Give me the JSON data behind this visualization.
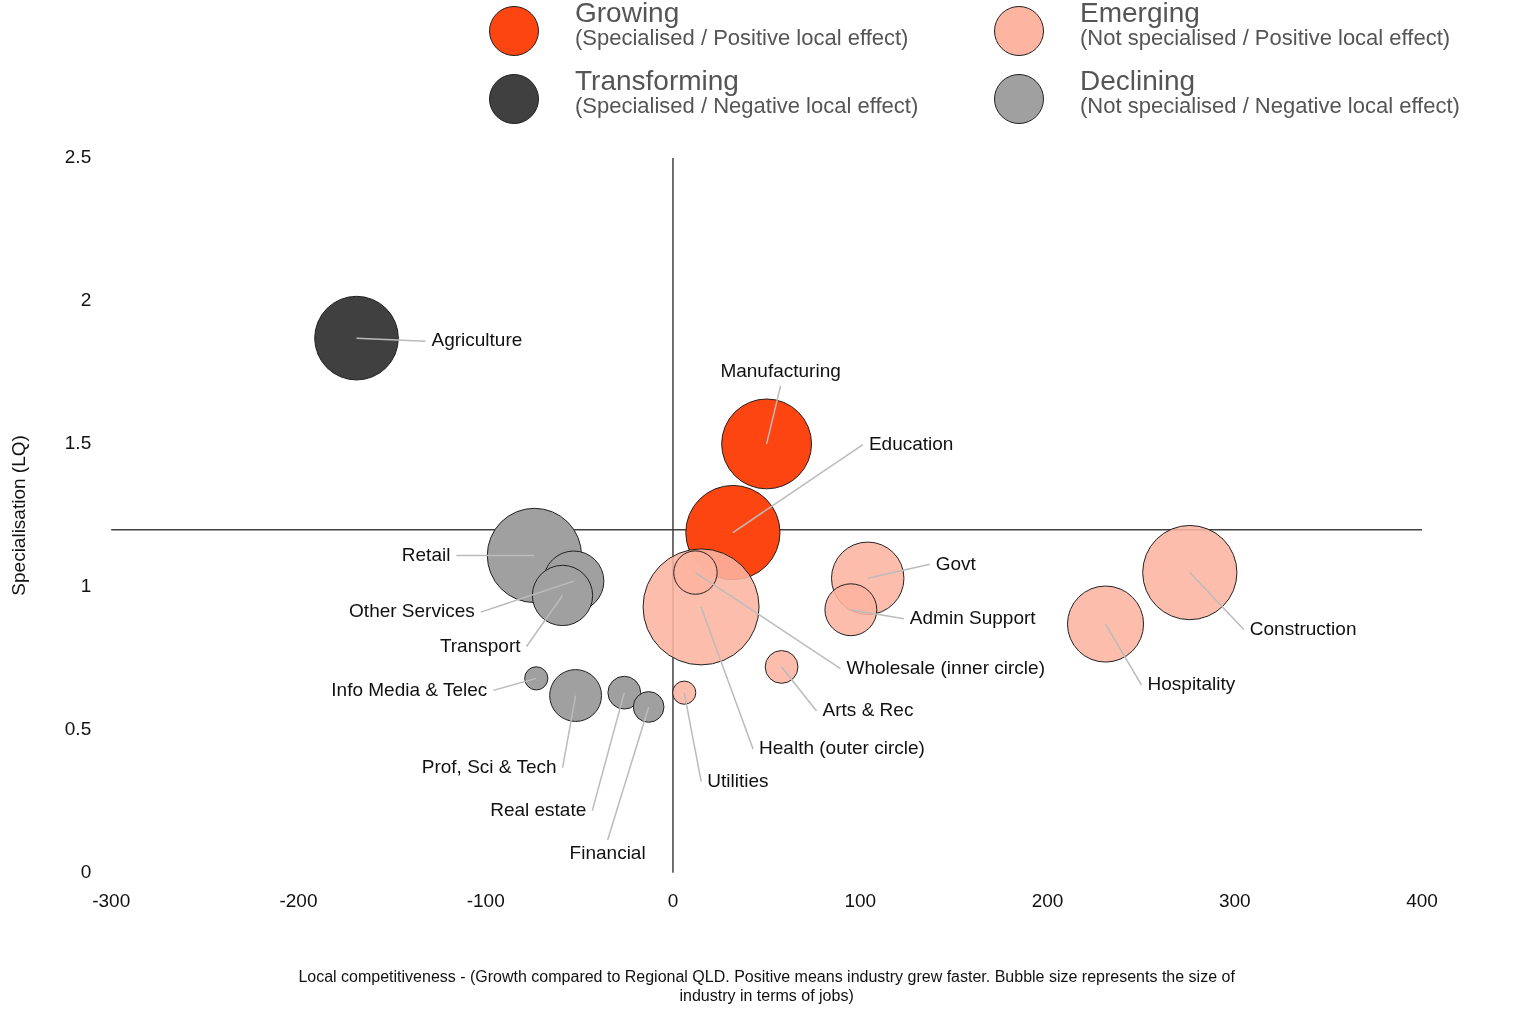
{
  "chart_data": {
    "type": "bubble",
    "xlabel": "Local competitiveness - (Growth compared to Regional QLD. Positive means industry grew faster. Bubble size represents the size of industry in terms of jobs)",
    "ylabel": "Specialisation (LQ)",
    "xlim": [
      -300,
      400
    ],
    "xticks": [
      -300,
      -200,
      -100,
      0,
      100,
      200,
      300,
      400
    ],
    "ylim": [
      0,
      2.5
    ],
    "yticks": [
      0,
      0.5,
      1,
      1.5,
      2,
      2.5
    ],
    "grid": false,
    "legend": "top",
    "series": [
      {
        "name": "Growing\n(Specialised / Positive local effect)",
        "color": "#fc4511",
        "x": [
          50,
          32
        ],
        "values": [
          1.5,
          1.19
        ],
        "sizes": [
          0.6,
          0.66
        ]
      },
      {
        "name": "Emerging\n(Not specialised / Positive local effect)",
        "color": "#fdb4a0",
        "x": [
          15,
          12,
          104,
          95,
          276,
          231,
          58,
          6
        ],
        "values": [
          0.93,
          1.05,
          1.03,
          0.92,
          1.05,
          0.87,
          0.72,
          0.63
        ],
        "sizes": [
          1,
          0.14,
          0.39,
          0.2,
          0.66,
          0.43,
          0.08,
          0.04
        ]
      },
      {
        "name": "Transforming\n(Specialised / Negative local effect)",
        "color": "#404040",
        "x": [
          -169
        ],
        "values": [
          1.87
        ],
        "sizes": [
          0.52
        ]
      },
      {
        "name": "Declining\n(Not specialised / Negative local effect)",
        "color": "#a0a0a0",
        "x": [
          -74,
          -53,
          -59,
          -73,
          -52,
          -26,
          -13
        ],
        "values": [
          1.11,
          1.02,
          0.97,
          0.68,
          0.62,
          0.63,
          0.58
        ],
        "sizes": [
          0.66,
          0.27,
          0.27,
          0.04,
          0.2,
          0.08,
          0.07
        ]
      }
    ],
    "ref_lines": [
      {
        "axis": "x",
        "value": 0,
        "color": "#404040"
      },
      {
        "axis": "y",
        "value": 1.2,
        "color": "#404040"
      }
    ],
    "annotations": [
      {
        "text": "Agriculture",
        "x": -169,
        "y": 1.87
      },
      {
        "text": "Manufacturing",
        "x": 50,
        "y": 1.5
      },
      {
        "text": "Education",
        "x": 32,
        "y": 1.19
      },
      {
        "text": "Govt",
        "x": 104,
        "y": 1.03
      },
      {
        "text": "Admin Support",
        "x": 95,
        "y": 0.92
      },
      {
        "text": "Construction",
        "x": 276,
        "y": 1.05
      },
      {
        "text": "Hospitality",
        "x": 231,
        "y": 0.87
      },
      {
        "text": "Wholesale (inner circle)",
        "x": 12,
        "y": 1.05
      },
      {
        "text": "Arts & Rec",
        "x": 58,
        "y": 0.72
      },
      {
        "text": "Health (outer circle)",
        "x": 15,
        "y": 0.93
      },
      {
        "text": "Utilities",
        "x": 6,
        "y": 0.63
      },
      {
        "text": "Retail",
        "x": -74,
        "y": 1.11
      },
      {
        "text": "Other Services",
        "x": -53,
        "y": 1.02
      },
      {
        "text": "Transport",
        "x": -59,
        "y": 0.97
      },
      {
        "text": "Info Media & Telec",
        "x": -73,
        "y": 0.68
      },
      {
        "text": "Prof, Sci & Tech",
        "x": -52,
        "y": 0.62
      },
      {
        "text": "Real estate",
        "x": -26,
        "y": 0.63
      },
      {
        "text": "Financial",
        "x": -13,
        "y": 0.58
      }
    ]
  }
}
